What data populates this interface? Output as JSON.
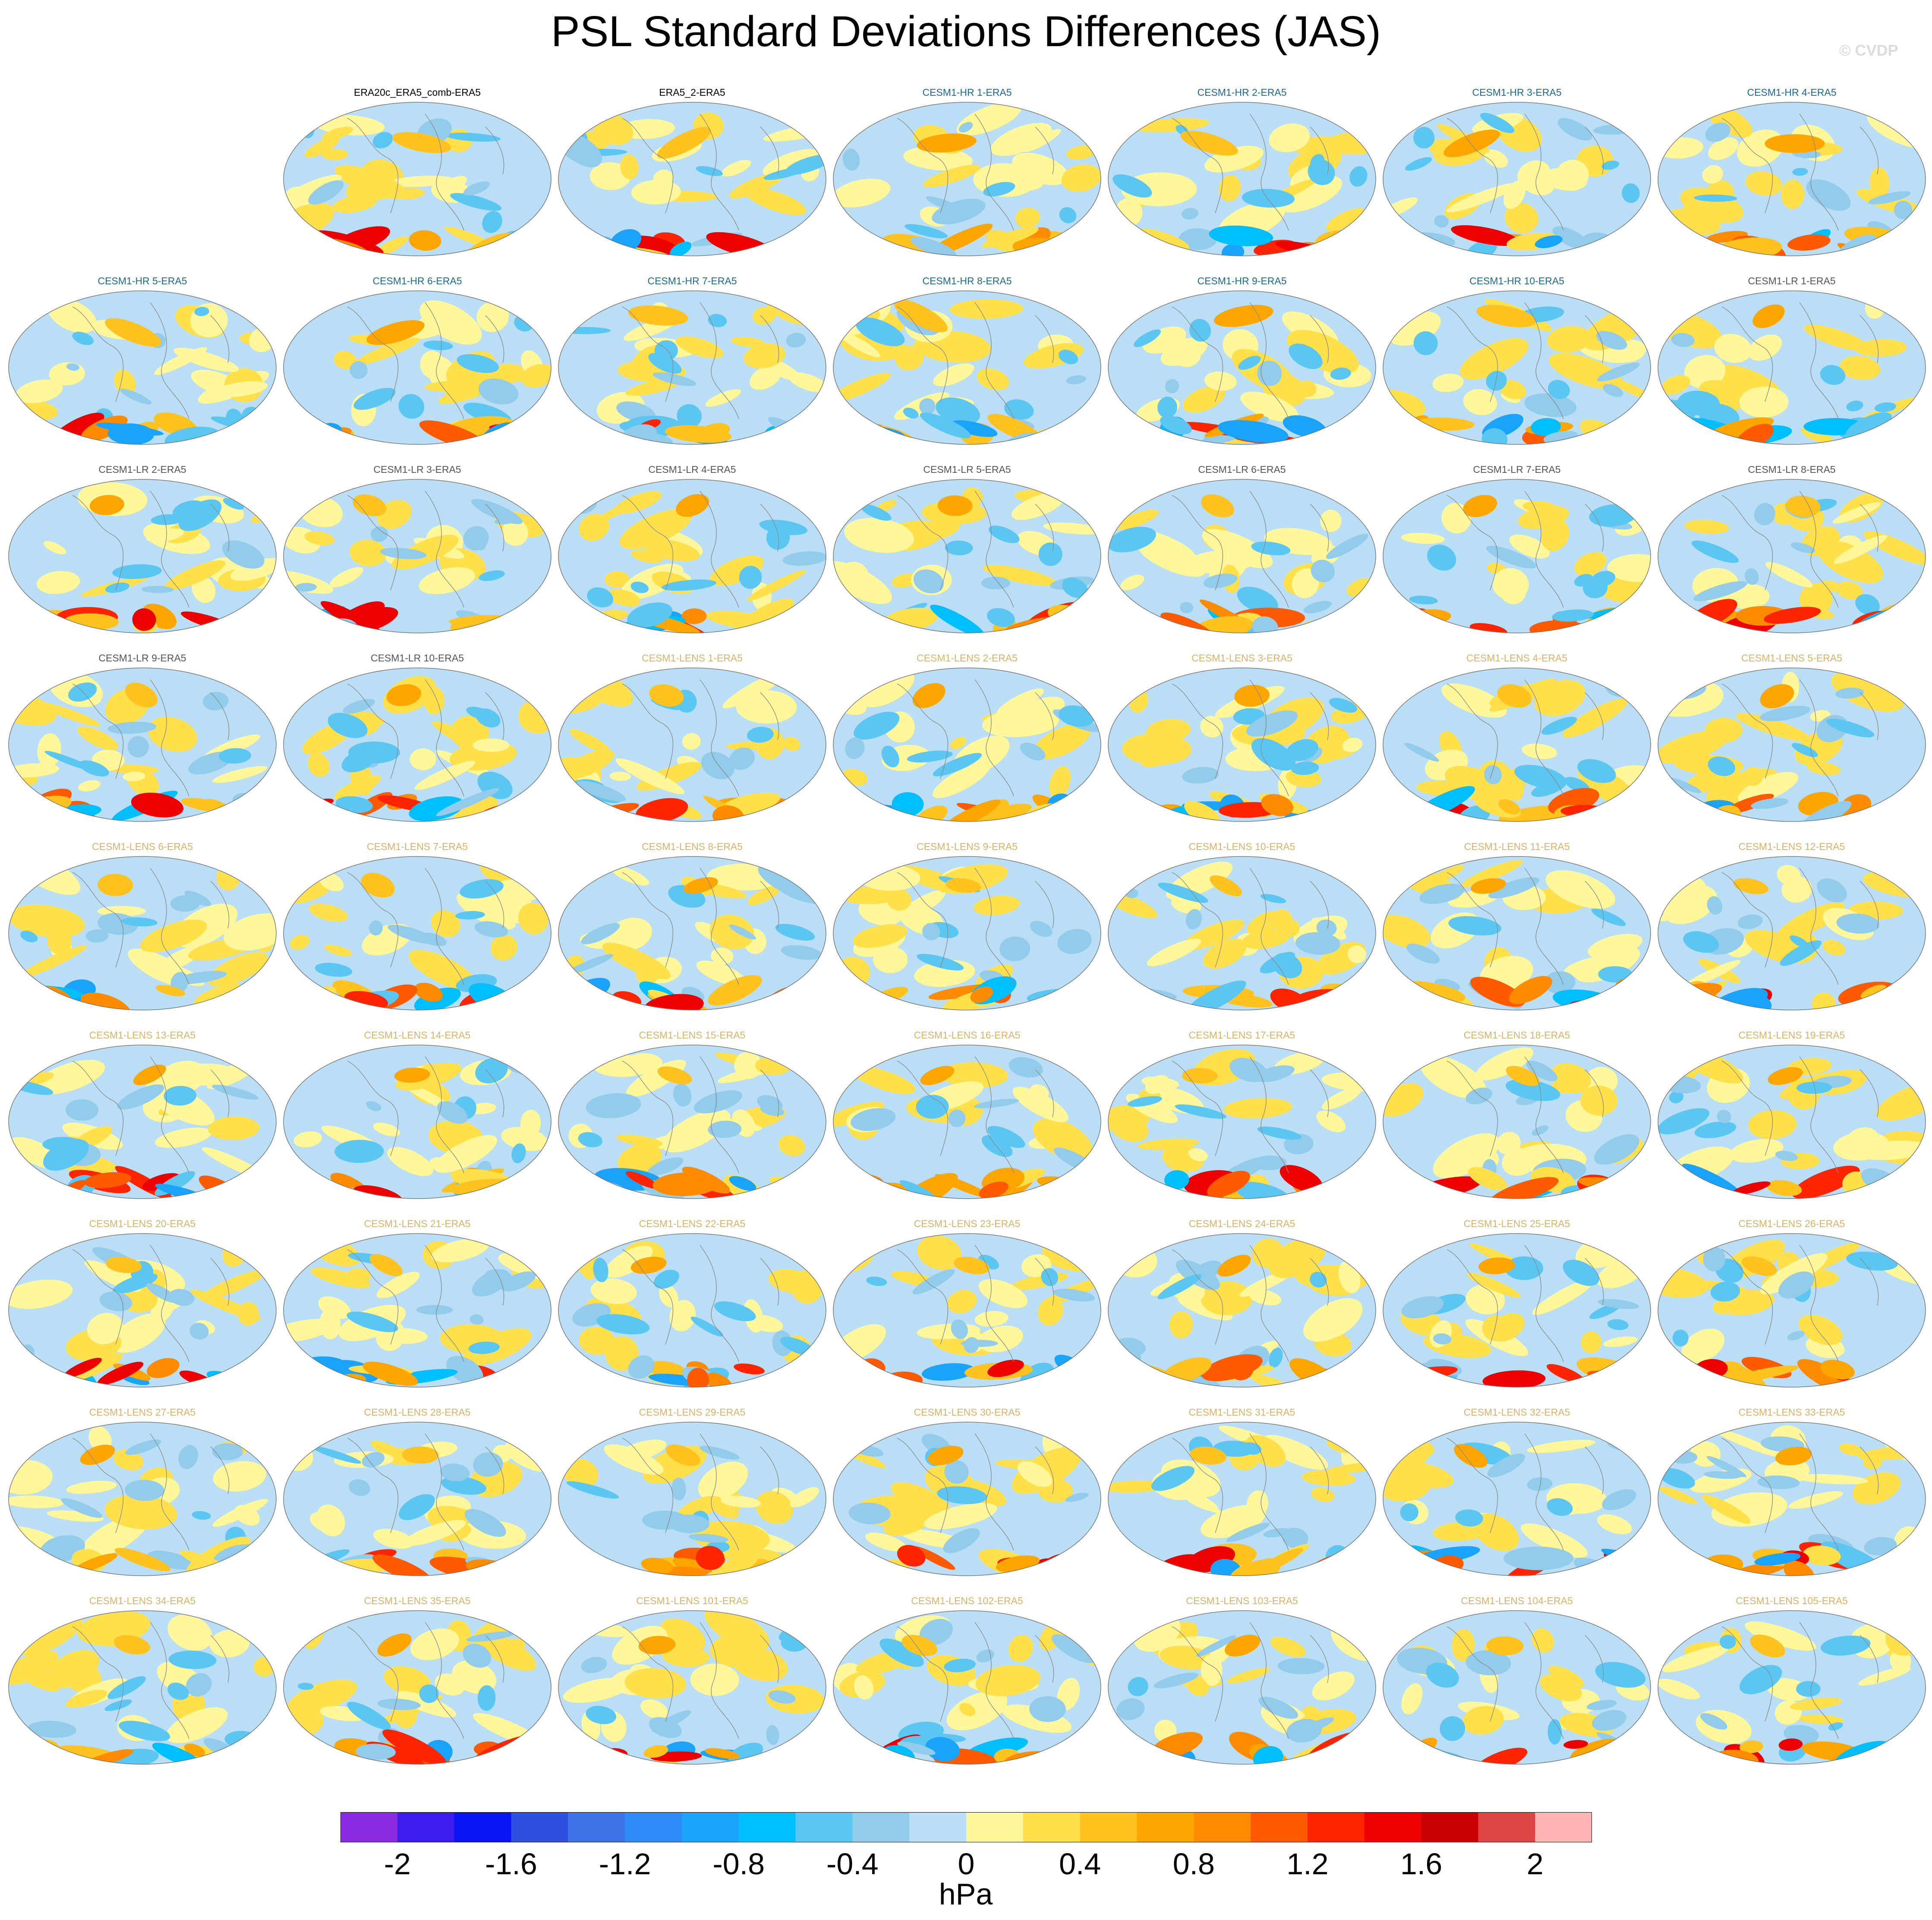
{
  "title": "PSL Standard Deviations Differences (JAS)",
  "watermark": "© CVDP",
  "units": "hPa",
  "colors": {
    "levels": [
      "#8b2be2",
      "#3d1cf0",
      "#0a14f5",
      "#2f4fe0",
      "#3d73e6",
      "#2e8af7",
      "#1aa3fa",
      "#00bfff",
      "#5cc6f2",
      "#93cbeb",
      "#b9def5",
      "#fff79a",
      "#ffe04a",
      "#ffc21f",
      "#ffa500",
      "#ff8c00",
      "#ff5a00",
      "#ff2400",
      "#ee0000",
      "#c80000",
      "#dd4444",
      "#ffb3b3"
    ],
    "title_obs": "#000000",
    "title_hr": "#1e6a8c",
    "title_lr": "#555555",
    "title_lens": "#d9b36a"
  },
  "chart_data": {
    "type": "heatmap",
    "title": "PSL Standard Deviations Differences (JAS)",
    "grid": "7 columns x 9 rows of global maps",
    "colorbar": {
      "label": "hPa",
      "range": [
        -2.2,
        2.2
      ],
      "interval": 0.2,
      "tick_values": [
        -2,
        -1.6,
        -1.2,
        -0.8,
        -0.4,
        0,
        0.4,
        0.8,
        1.2,
        1.6,
        2
      ],
      "tick_labels": [
        "-2",
        "-1.6",
        "-1.2",
        "-0.8",
        "-0.4",
        "0",
        "0.4",
        "0.8",
        "1.2",
        "1.6",
        "2"
      ]
    },
    "panels": [
      {
        "label": "ERA20c_ERA5_comb-ERA5",
        "group": "obs",
        "row": 0,
        "col": 1
      },
      {
        "label": "ERA5_2-ERA5",
        "group": "obs",
        "row": 0,
        "col": 2
      },
      {
        "label": "CESM1-HR 1-ERA5",
        "group": "hr",
        "row": 0,
        "col": 3
      },
      {
        "label": "CESM1-HR 2-ERA5",
        "group": "hr",
        "row": 0,
        "col": 4
      },
      {
        "label": "CESM1-HR 3-ERA5",
        "group": "hr",
        "row": 0,
        "col": 5
      },
      {
        "label": "CESM1-HR 4-ERA5",
        "group": "hr",
        "row": 0,
        "col": 6
      },
      {
        "label": "CESM1-HR 5-ERA5",
        "group": "hr",
        "row": 1,
        "col": 0
      },
      {
        "label": "CESM1-HR 6-ERA5",
        "group": "hr",
        "row": 1,
        "col": 1
      },
      {
        "label": "CESM1-HR 7-ERA5",
        "group": "hr",
        "row": 1,
        "col": 2
      },
      {
        "label": "CESM1-HR 8-ERA5",
        "group": "hr",
        "row": 1,
        "col": 3
      },
      {
        "label": "CESM1-HR 9-ERA5",
        "group": "hr",
        "row": 1,
        "col": 4
      },
      {
        "label": "CESM1-HR 10-ERA5",
        "group": "hr",
        "row": 1,
        "col": 5
      },
      {
        "label": "CESM1-LR 1-ERA5",
        "group": "lr",
        "row": 1,
        "col": 6
      },
      {
        "label": "CESM1-LR 2-ERA5",
        "group": "lr",
        "row": 2,
        "col": 0
      },
      {
        "label": "CESM1-LR 3-ERA5",
        "group": "lr",
        "row": 2,
        "col": 1
      },
      {
        "label": "CESM1-LR 4-ERA5",
        "group": "lr",
        "row": 2,
        "col": 2
      },
      {
        "label": "CESM1-LR 5-ERA5",
        "group": "lr",
        "row": 2,
        "col": 3
      },
      {
        "label": "CESM1-LR 6-ERA5",
        "group": "lr",
        "row": 2,
        "col": 4
      },
      {
        "label": "CESM1-LR 7-ERA5",
        "group": "lr",
        "row": 2,
        "col": 5
      },
      {
        "label": "CESM1-LR 8-ERA5",
        "group": "lr",
        "row": 2,
        "col": 6
      },
      {
        "label": "CESM1-LR 9-ERA5",
        "group": "lr",
        "row": 3,
        "col": 0
      },
      {
        "label": "CESM1-LR 10-ERA5",
        "group": "lr",
        "row": 3,
        "col": 1
      },
      {
        "label": "CESM1-LENS 1-ERA5",
        "group": "lens",
        "row": 3,
        "col": 2
      },
      {
        "label": "CESM1-LENS 2-ERA5",
        "group": "lens",
        "row": 3,
        "col": 3
      },
      {
        "label": "CESM1-LENS 3-ERA5",
        "group": "lens",
        "row": 3,
        "col": 4
      },
      {
        "label": "CESM1-LENS 4-ERA5",
        "group": "lens",
        "row": 3,
        "col": 5
      },
      {
        "label": "CESM1-LENS 5-ERA5",
        "group": "lens",
        "row": 3,
        "col": 6
      },
      {
        "label": "CESM1-LENS 6-ERA5",
        "group": "lens",
        "row": 4,
        "col": 0
      },
      {
        "label": "CESM1-LENS 7-ERA5",
        "group": "lens",
        "row": 4,
        "col": 1
      },
      {
        "label": "CESM1-LENS 8-ERA5",
        "group": "lens",
        "row": 4,
        "col": 2
      },
      {
        "label": "CESM1-LENS 9-ERA5",
        "group": "lens",
        "row": 4,
        "col": 3
      },
      {
        "label": "CESM1-LENS 10-ERA5",
        "group": "lens",
        "row": 4,
        "col": 4
      },
      {
        "label": "CESM1-LENS 11-ERA5",
        "group": "lens",
        "row": 4,
        "col": 5
      },
      {
        "label": "CESM1-LENS 12-ERA5",
        "group": "lens",
        "row": 4,
        "col": 6
      },
      {
        "label": "CESM1-LENS 13-ERA5",
        "group": "lens",
        "row": 5,
        "col": 0
      },
      {
        "label": "CESM1-LENS 14-ERA5",
        "group": "lens",
        "row": 5,
        "col": 1
      },
      {
        "label": "CESM1-LENS 15-ERA5",
        "group": "lens",
        "row": 5,
        "col": 2
      },
      {
        "label": "CESM1-LENS 16-ERA5",
        "group": "lens",
        "row": 5,
        "col": 3
      },
      {
        "label": "CESM1-LENS 17-ERA5",
        "group": "lens",
        "row": 5,
        "col": 4
      },
      {
        "label": "CESM1-LENS 18-ERA5",
        "group": "lens",
        "row": 5,
        "col": 5
      },
      {
        "label": "CESM1-LENS 19-ERA5",
        "group": "lens",
        "row": 5,
        "col": 6
      },
      {
        "label": "CESM1-LENS 20-ERA5",
        "group": "lens",
        "row": 6,
        "col": 0
      },
      {
        "label": "CESM1-LENS 21-ERA5",
        "group": "lens",
        "row": 6,
        "col": 1
      },
      {
        "label": "CESM1-LENS 22-ERA5",
        "group": "lens",
        "row": 6,
        "col": 2
      },
      {
        "label": "CESM1-LENS 23-ERA5",
        "group": "lens",
        "row": 6,
        "col": 3
      },
      {
        "label": "CESM1-LENS 24-ERA5",
        "group": "lens",
        "row": 6,
        "col": 4
      },
      {
        "label": "CESM1-LENS 25-ERA5",
        "group": "lens",
        "row": 6,
        "col": 5
      },
      {
        "label": "CESM1-LENS 26-ERA5",
        "group": "lens",
        "row": 6,
        "col": 6
      },
      {
        "label": "CESM1-LENS 27-ERA5",
        "group": "lens",
        "row": 7,
        "col": 0
      },
      {
        "label": "CESM1-LENS 28-ERA5",
        "group": "lens",
        "row": 7,
        "col": 1
      },
      {
        "label": "CESM1-LENS 29-ERA5",
        "group": "lens",
        "row": 7,
        "col": 2
      },
      {
        "label": "CESM1-LENS 30-ERA5",
        "group": "lens",
        "row": 7,
        "col": 3
      },
      {
        "label": "CESM1-LENS 31-ERA5",
        "group": "lens",
        "row": 7,
        "col": 4
      },
      {
        "label": "CESM1-LENS 32-ERA5",
        "group": "lens",
        "row": 7,
        "col": 5
      },
      {
        "label": "CESM1-LENS 33-ERA5",
        "group": "lens",
        "row": 7,
        "col": 6
      },
      {
        "label": "CESM1-LENS 34-ERA5",
        "group": "lens",
        "row": 8,
        "col": 0
      },
      {
        "label": "CESM1-LENS 35-ERA5",
        "group": "lens",
        "row": 8,
        "col": 1
      },
      {
        "label": "CESM1-LENS 101-ERA5",
        "group": "lens",
        "row": 8,
        "col": 2
      },
      {
        "label": "CESM1-LENS 102-ERA5",
        "group": "lens",
        "row": 8,
        "col": 3
      },
      {
        "label": "CESM1-LENS 103-ERA5",
        "group": "lens",
        "row": 8,
        "col": 4
      },
      {
        "label": "CESM1-LENS 104-ERA5",
        "group": "lens",
        "row": 8,
        "col": 5
      },
      {
        "label": "CESM1-LENS 105-ERA5",
        "group": "lens",
        "row": 8,
        "col": 6
      }
    ]
  }
}
